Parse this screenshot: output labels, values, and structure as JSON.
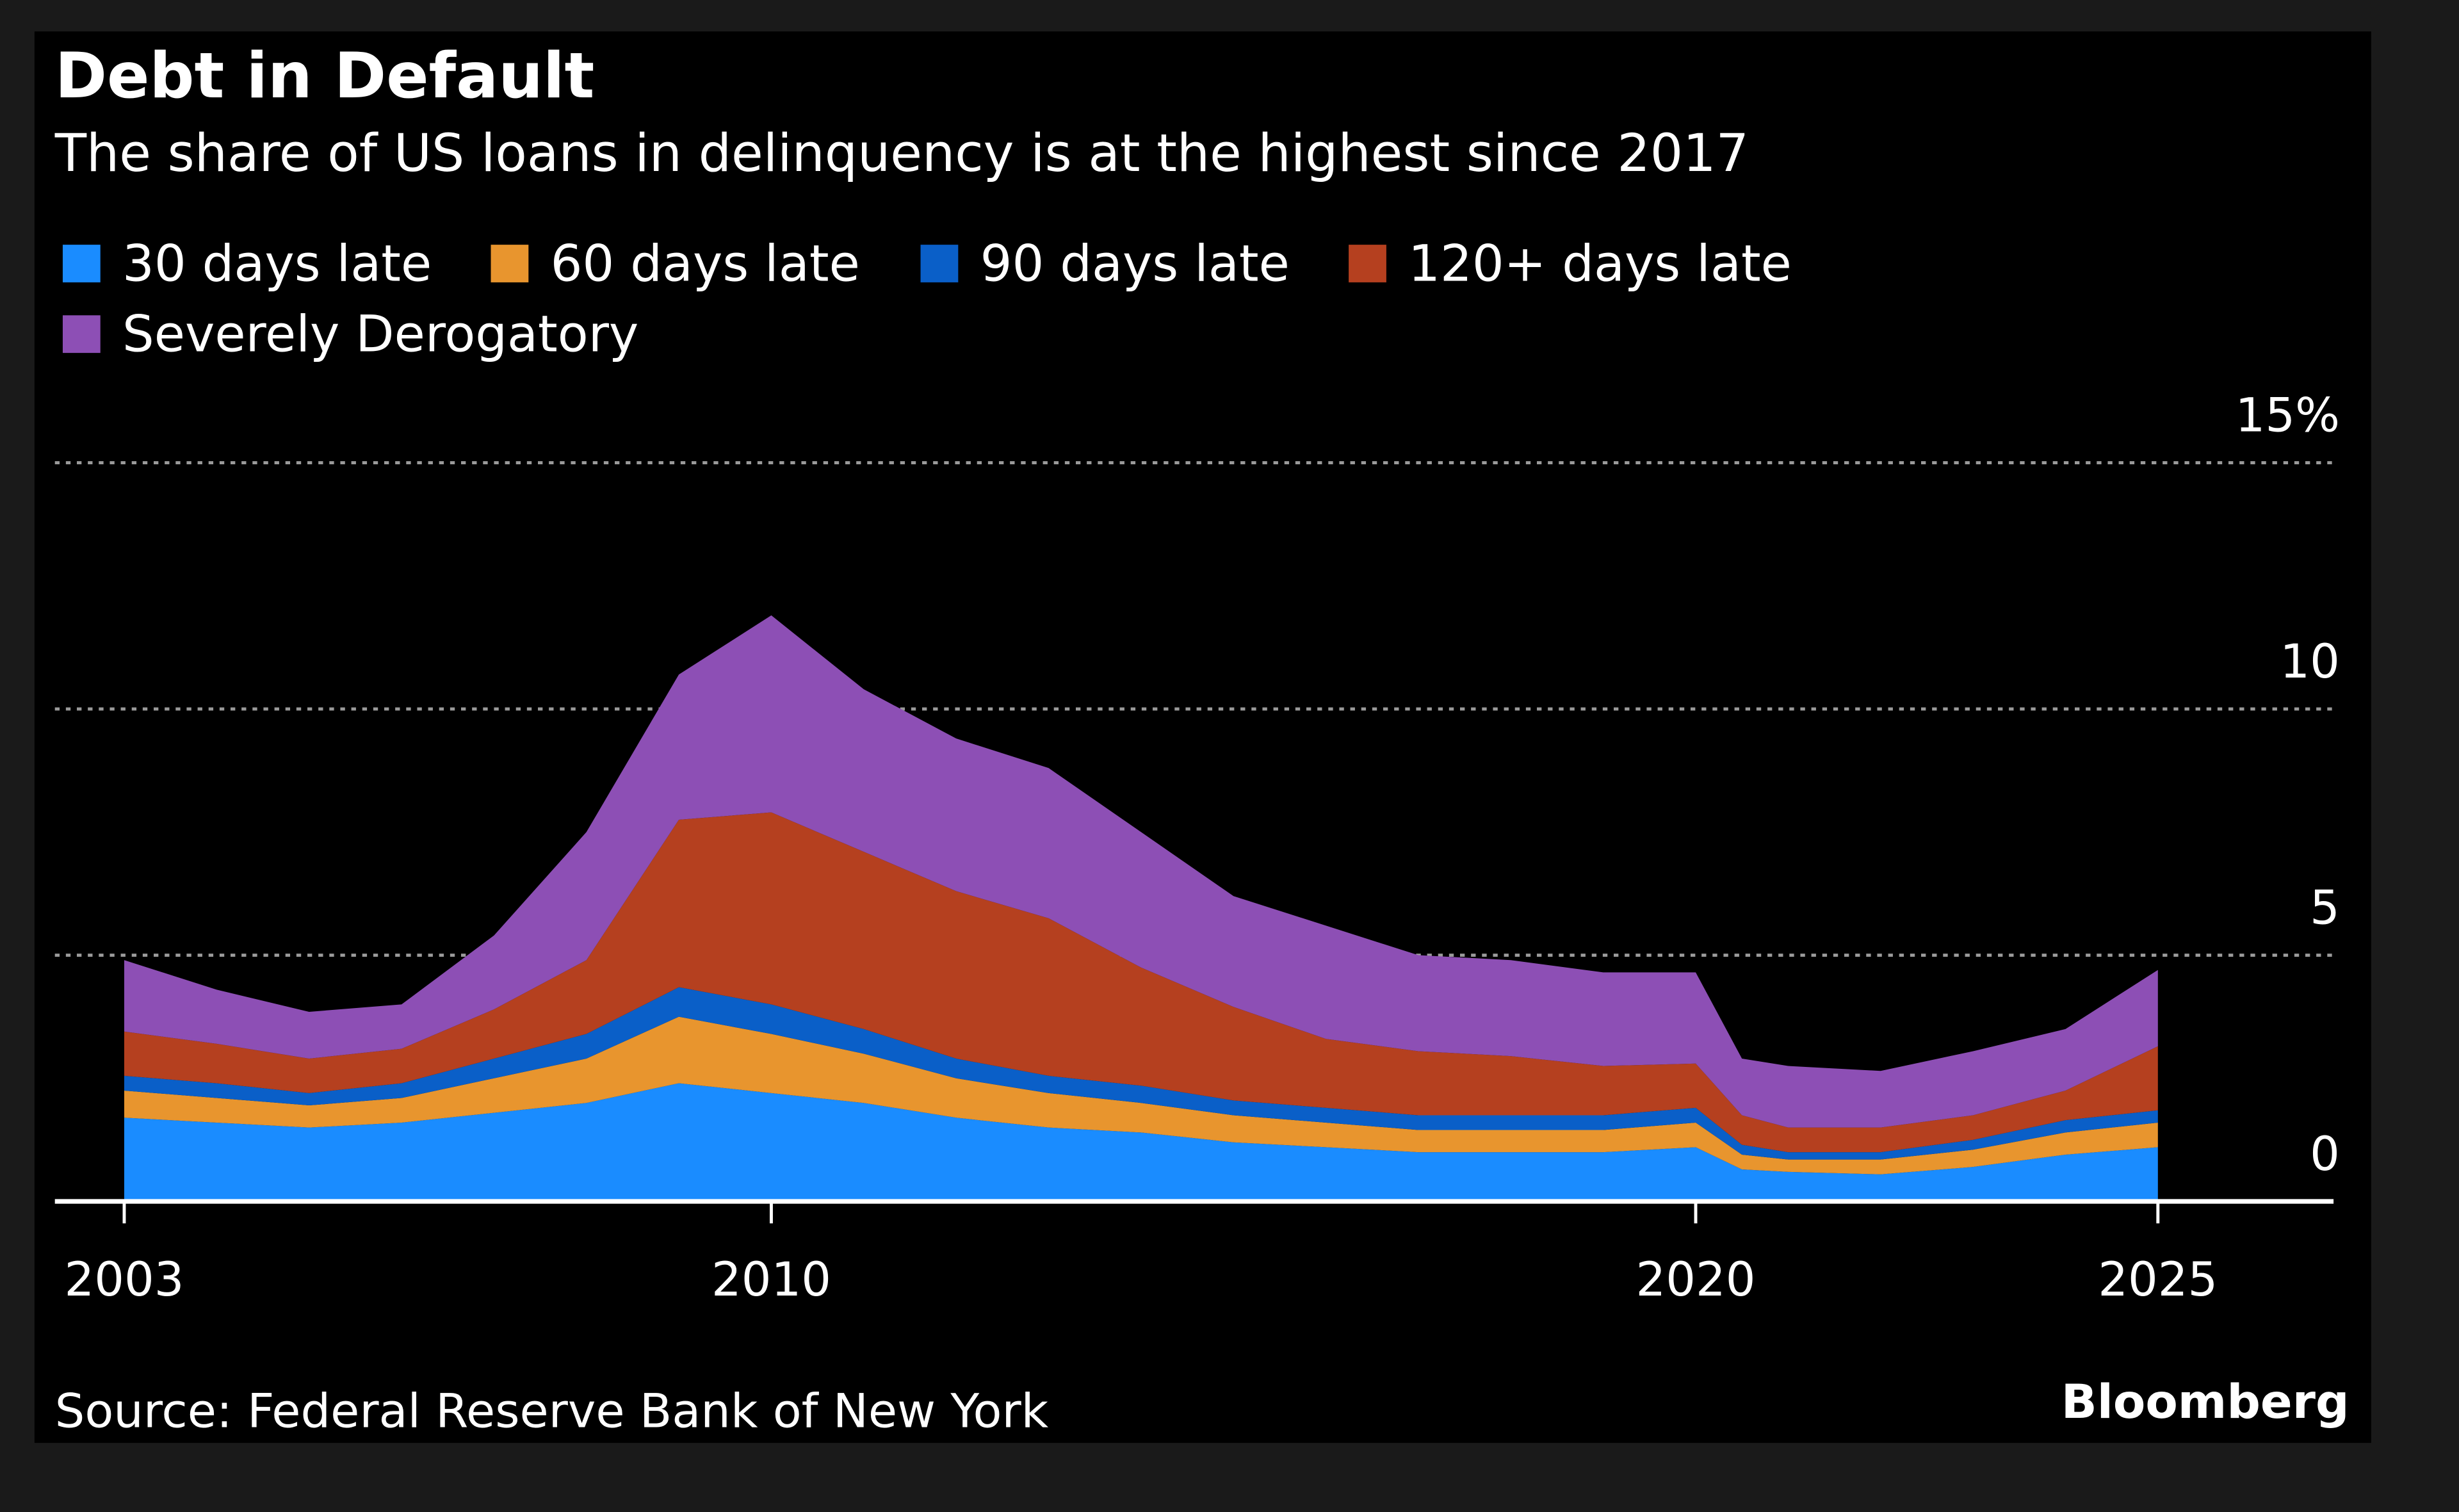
{
  "chart_data": {
    "type": "stacked-area",
    "title": "Debt in Default",
    "subtitle": "The share of US loans in delinquency is at the highest since 2017",
    "source": "Source: Federal Reserve Bank of New York",
    "brand": "Bloomberg",
    "x": [
      2003,
      2004,
      2005,
      2006,
      2007,
      2008,
      2009,
      2010,
      2011,
      2012,
      2013,
      2014,
      2015,
      2016,
      2017,
      2018,
      2019,
      2020,
      2020.5,
      2021,
      2022,
      2023,
      2024,
      2025
    ],
    "series": [
      {
        "name": "30 days late",
        "color": "#1a8cff",
        "values": [
          1.7,
          1.6,
          1.5,
          1.6,
          1.8,
          2.0,
          2.4,
          2.2,
          2.0,
          1.7,
          1.5,
          1.4,
          1.2,
          1.1,
          1.0,
          1.0,
          1.0,
          1.1,
          0.65,
          0.6,
          0.55,
          0.7,
          0.95,
          1.1
        ]
      },
      {
        "name": "60 days late",
        "color": "#e8952e",
        "values": [
          0.55,
          0.5,
          0.45,
          0.5,
          0.7,
          0.9,
          1.35,
          1.2,
          1.0,
          0.8,
          0.7,
          0.6,
          0.55,
          0.5,
          0.45,
          0.45,
          0.45,
          0.5,
          0.3,
          0.25,
          0.3,
          0.35,
          0.45,
          0.5
        ]
      },
      {
        "name": "90 days late",
        "color": "#0a5fc8",
        "values": [
          0.3,
          0.3,
          0.25,
          0.3,
          0.4,
          0.5,
          0.6,
          0.6,
          0.5,
          0.4,
          0.35,
          0.35,
          0.3,
          0.3,
          0.3,
          0.3,
          0.3,
          0.3,
          0.2,
          0.15,
          0.15,
          0.2,
          0.25,
          0.25
        ]
      },
      {
        "name": "120+ days late",
        "color": "#b5401f",
        "values": [
          0.9,
          0.8,
          0.7,
          0.7,
          1.0,
          1.5,
          3.4,
          3.9,
          3.6,
          3.4,
          3.2,
          2.4,
          1.9,
          1.4,
          1.3,
          1.2,
          1.0,
          0.9,
          0.6,
          0.5,
          0.5,
          0.5,
          0.6,
          1.3
        ]
      },
      {
        "name": "Severely Derogatory",
        "color": "#8d4fb5",
        "values": [
          1.45,
          1.1,
          0.95,
          0.9,
          1.5,
          2.6,
          2.95,
          4.0,
          3.3,
          3.1,
          3.05,
          2.75,
          2.25,
          2.3,
          1.95,
          1.95,
          1.9,
          1.85,
          1.15,
          1.25,
          1.15,
          1.3,
          1.25,
          1.55
        ]
      }
    ],
    "xlim": [
      2002.25,
      2026.9
    ],
    "xticks": [
      2003,
      2010,
      2020,
      2025
    ],
    "ylim": [
      0,
      15
    ],
    "yticks": [
      0,
      5,
      10,
      {
        "value": 15,
        "label": "15%"
      }
    ],
    "grid": true
  }
}
